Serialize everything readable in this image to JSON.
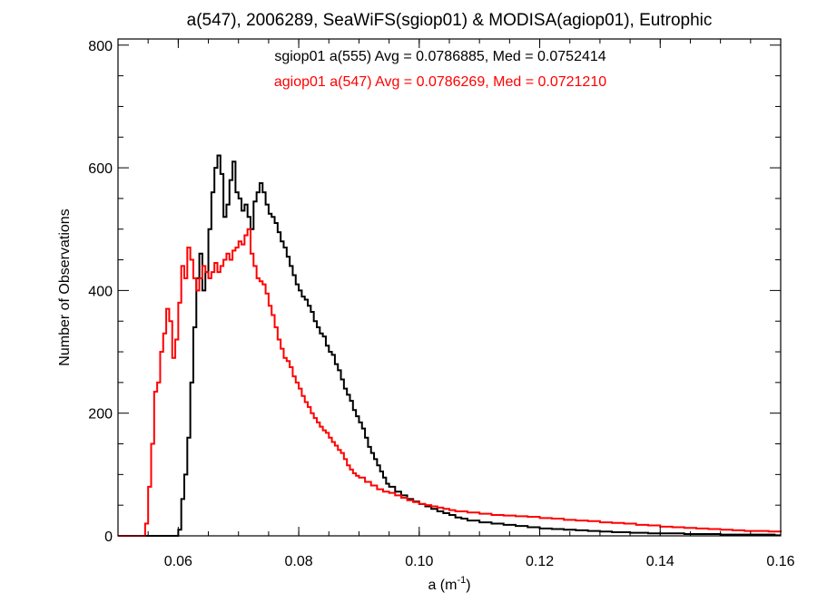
{
  "chart_data": {
    "type": "line",
    "title": "a(547), 2006289, SeaWiFS(sgiop01) & MODISA(agiop01), Eutrophic",
    "xlabel_base": "a (m",
    "xlabel_sup": "-1",
    "xlabel_close": ")",
    "ylabel": "Number of Observations",
    "xlim": [
      0.05,
      0.16
    ],
    "ylim": [
      0,
      810
    ],
    "x_ticks": [
      "0.06",
      "0.08",
      "0.10",
      "0.12",
      "0.14",
      "0.16"
    ],
    "x_tick_values": [
      0.06,
      0.08,
      0.1,
      0.12,
      0.14,
      0.16
    ],
    "y_ticks": [
      "0",
      "200",
      "400",
      "600",
      "800"
    ],
    "y_tick_values": [
      0,
      200,
      400,
      600,
      800
    ],
    "grid": false,
    "legend_placement": "top-center",
    "legend": [
      "sgiop01 a(555) Avg = 0.0786885, Med = 0.0752414",
      "agiop01 a(547) Avg = 0.0786269, Med = 0.0721210"
    ],
    "series": [
      {
        "name": "sgiop01 a(555)",
        "color": "#000000",
        "style": "step",
        "points": [
          [
            0.05,
            0
          ],
          [
            0.0595,
            0
          ],
          [
            0.06,
            10
          ],
          [
            0.0605,
            60
          ],
          [
            0.061,
            100
          ],
          [
            0.0615,
            160
          ],
          [
            0.062,
            250
          ],
          [
            0.0625,
            340
          ],
          [
            0.063,
            420
          ],
          [
            0.0635,
            460
          ],
          [
            0.064,
            400
          ],
          [
            0.0645,
            430
          ],
          [
            0.065,
            500
          ],
          [
            0.0655,
            560
          ],
          [
            0.066,
            600
          ],
          [
            0.0665,
            620
          ],
          [
            0.067,
            590
          ],
          [
            0.0675,
            520
          ],
          [
            0.068,
            540
          ],
          [
            0.0685,
            580
          ],
          [
            0.069,
            610
          ],
          [
            0.0695,
            560
          ],
          [
            0.07,
            550
          ],
          [
            0.0705,
            530
          ],
          [
            0.071,
            540
          ],
          [
            0.0715,
            520
          ],
          [
            0.072,
            500
          ],
          [
            0.0725,
            545
          ],
          [
            0.073,
            560
          ],
          [
            0.0735,
            575
          ],
          [
            0.074,
            560
          ],
          [
            0.0745,
            540
          ],
          [
            0.075,
            525
          ],
          [
            0.0755,
            520
          ],
          [
            0.076,
            510
          ],
          [
            0.0765,
            495
          ],
          [
            0.077,
            480
          ],
          [
            0.0775,
            470
          ],
          [
            0.078,
            455
          ],
          [
            0.0785,
            440
          ],
          [
            0.079,
            425
          ],
          [
            0.0795,
            410
          ],
          [
            0.08,
            400
          ],
          [
            0.0805,
            390
          ],
          [
            0.081,
            385
          ],
          [
            0.0815,
            375
          ],
          [
            0.082,
            365
          ],
          [
            0.0825,
            350
          ],
          [
            0.083,
            340
          ],
          [
            0.0835,
            330
          ],
          [
            0.084,
            325
          ],
          [
            0.0845,
            310
          ],
          [
            0.085,
            300
          ],
          [
            0.0855,
            295
          ],
          [
            0.086,
            280
          ],
          [
            0.0865,
            270
          ],
          [
            0.087,
            255
          ],
          [
            0.0875,
            240
          ],
          [
            0.088,
            230
          ],
          [
            0.0885,
            220
          ],
          [
            0.089,
            205
          ],
          [
            0.0895,
            195
          ],
          [
            0.09,
            185
          ],
          [
            0.0905,
            175
          ],
          [
            0.091,
            160
          ],
          [
            0.0915,
            145
          ],
          [
            0.092,
            135
          ],
          [
            0.0925,
            125
          ],
          [
            0.093,
            115
          ],
          [
            0.0935,
            105
          ],
          [
            0.094,
            95
          ],
          [
            0.0945,
            85
          ],
          [
            0.095,
            80
          ],
          [
            0.096,
            72
          ],
          [
            0.097,
            66
          ],
          [
            0.098,
            60
          ],
          [
            0.099,
            56
          ],
          [
            0.1,
            52
          ],
          [
            0.101,
            48
          ],
          [
            0.102,
            44
          ],
          [
            0.103,
            40
          ],
          [
            0.104,
            37
          ],
          [
            0.105,
            34
          ],
          [
            0.106,
            30
          ],
          [
            0.107,
            28
          ],
          [
            0.108,
            25
          ],
          [
            0.11,
            22
          ],
          [
            0.112,
            20
          ],
          [
            0.114,
            18
          ],
          [
            0.116,
            16
          ],
          [
            0.118,
            14
          ],
          [
            0.12,
            12
          ],
          [
            0.122,
            11
          ],
          [
            0.124,
            10
          ],
          [
            0.126,
            9
          ],
          [
            0.128,
            8
          ],
          [
            0.13,
            7
          ],
          [
            0.132,
            6
          ],
          [
            0.135,
            5
          ],
          [
            0.138,
            4
          ],
          [
            0.141,
            4
          ],
          [
            0.144,
            3
          ],
          [
            0.147,
            3
          ],
          [
            0.15,
            2
          ],
          [
            0.153,
            2
          ],
          [
            0.156,
            2
          ],
          [
            0.159,
            1
          ],
          [
            0.16,
            1
          ]
        ]
      },
      {
        "name": "agiop01 a(547)",
        "color": "#ff0000",
        "style": "step",
        "points": [
          [
            0.05,
            0
          ],
          [
            0.054,
            0
          ],
          [
            0.0545,
            20
          ],
          [
            0.055,
            80
          ],
          [
            0.0555,
            150
          ],
          [
            0.056,
            235
          ],
          [
            0.0565,
            250
          ],
          [
            0.057,
            300
          ],
          [
            0.0575,
            330
          ],
          [
            0.058,
            370
          ],
          [
            0.0585,
            350
          ],
          [
            0.059,
            290
          ],
          [
            0.0595,
            320
          ],
          [
            0.06,
            380
          ],
          [
            0.0605,
            440
          ],
          [
            0.061,
            420
          ],
          [
            0.0615,
            470
          ],
          [
            0.062,
            450
          ],
          [
            0.0625,
            420
          ],
          [
            0.063,
            400
          ],
          [
            0.0635,
            420
          ],
          [
            0.064,
            440
          ],
          [
            0.0645,
            430
          ],
          [
            0.065,
            420
          ],
          [
            0.0655,
            430
          ],
          [
            0.066,
            445
          ],
          [
            0.0665,
            430
          ],
          [
            0.067,
            440
          ],
          [
            0.0675,
            450
          ],
          [
            0.068,
            460
          ],
          [
            0.0685,
            450
          ],
          [
            0.069,
            465
          ],
          [
            0.0695,
            470
          ],
          [
            0.07,
            480
          ],
          [
            0.0705,
            475
          ],
          [
            0.071,
            490
          ],
          [
            0.0715,
            500
          ],
          [
            0.072,
            460
          ],
          [
            0.0725,
            440
          ],
          [
            0.073,
            420
          ],
          [
            0.0735,
            415
          ],
          [
            0.074,
            410
          ],
          [
            0.0745,
            395
          ],
          [
            0.075,
            375
          ],
          [
            0.0755,
            360
          ],
          [
            0.076,
            340
          ],
          [
            0.0765,
            320
          ],
          [
            0.077,
            305
          ],
          [
            0.0775,
            290
          ],
          [
            0.078,
            285
          ],
          [
            0.0785,
            275
          ],
          [
            0.079,
            260
          ],
          [
            0.0795,
            250
          ],
          [
            0.08,
            240
          ],
          [
            0.0805,
            228
          ],
          [
            0.081,
            218
          ],
          [
            0.0815,
            210
          ],
          [
            0.082,
            200
          ],
          [
            0.0825,
            192
          ],
          [
            0.083,
            185
          ],
          [
            0.0835,
            178
          ],
          [
            0.084,
            172
          ],
          [
            0.0845,
            168
          ],
          [
            0.085,
            160
          ],
          [
            0.0855,
            153
          ],
          [
            0.086,
            147
          ],
          [
            0.0865,
            140
          ],
          [
            0.087,
            135
          ],
          [
            0.0875,
            125
          ],
          [
            0.088,
            115
          ],
          [
            0.0885,
            108
          ],
          [
            0.089,
            102
          ],
          [
            0.0895,
            98
          ],
          [
            0.09,
            95
          ],
          [
            0.091,
            88
          ],
          [
            0.092,
            82
          ],
          [
            0.093,
            76
          ],
          [
            0.094,
            72
          ],
          [
            0.095,
            70
          ],
          [
            0.096,
            66
          ],
          [
            0.097,
            62
          ],
          [
            0.098,
            58
          ],
          [
            0.099,
            55
          ],
          [
            0.1,
            52
          ],
          [
            0.101,
            50
          ],
          [
            0.102,
            48
          ],
          [
            0.103,
            46
          ],
          [
            0.104,
            44
          ],
          [
            0.105,
            42
          ],
          [
            0.106,
            40
          ],
          [
            0.108,
            38
          ],
          [
            0.11,
            36
          ],
          [
            0.112,
            34
          ],
          [
            0.114,
            33
          ],
          [
            0.116,
            32
          ],
          [
            0.118,
            31
          ],
          [
            0.12,
            29
          ],
          [
            0.122,
            28
          ],
          [
            0.124,
            26
          ],
          [
            0.126,
            25
          ],
          [
            0.128,
            24
          ],
          [
            0.13,
            22
          ],
          [
            0.132,
            21
          ],
          [
            0.134,
            20
          ],
          [
            0.136,
            18
          ],
          [
            0.138,
            17
          ],
          [
            0.14,
            15
          ],
          [
            0.142,
            14
          ],
          [
            0.144,
            13
          ],
          [
            0.146,
            12
          ],
          [
            0.148,
            11
          ],
          [
            0.15,
            10
          ],
          [
            0.152,
            9
          ],
          [
            0.154,
            8
          ],
          [
            0.156,
            8
          ],
          [
            0.158,
            7
          ],
          [
            0.16,
            6
          ]
        ]
      }
    ]
  }
}
